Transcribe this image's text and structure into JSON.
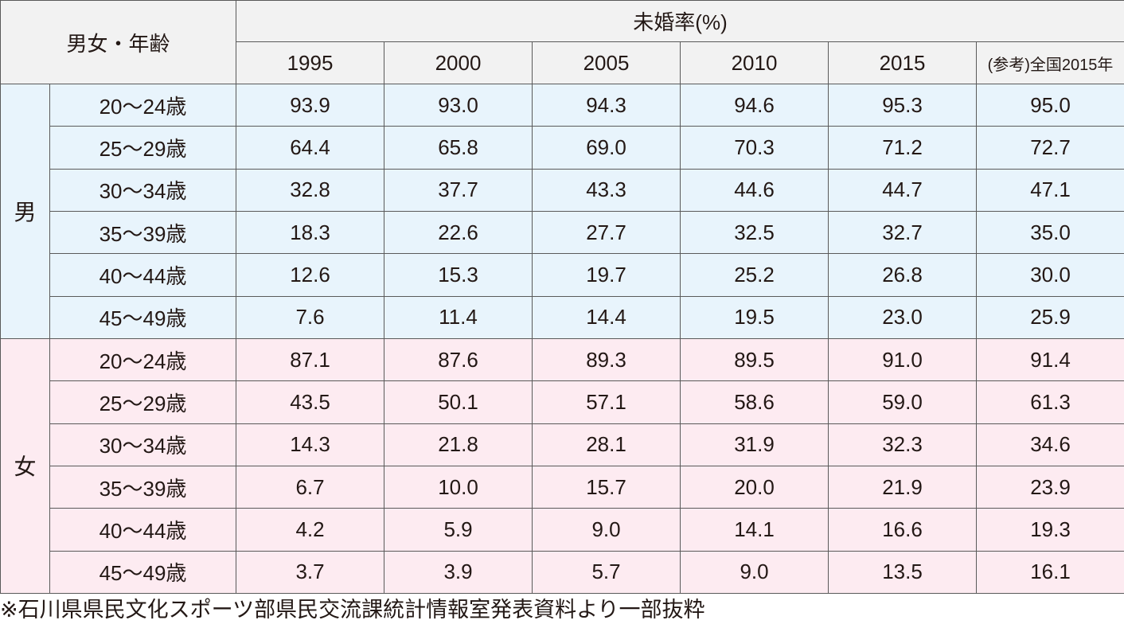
{
  "header": {
    "sex_age": "男女・年齢",
    "rate_title": "未婚率(%)",
    "years": [
      "1995",
      "2000",
      "2005",
      "2010",
      "2015",
      "(参考)全国2015年"
    ]
  },
  "groups": [
    {
      "sex": "男",
      "rows": [
        {
          "age": "20〜24歳",
          "values": [
            "93.9",
            "93.0",
            "94.3",
            "94.6",
            "95.3",
            "95.0"
          ]
        },
        {
          "age": "25〜29歳",
          "values": [
            "64.4",
            "65.8",
            "69.0",
            "70.3",
            "71.2",
            "72.7"
          ]
        },
        {
          "age": "30〜34歳",
          "values": [
            "32.8",
            "37.7",
            "43.3",
            "44.6",
            "44.7",
            "47.1"
          ]
        },
        {
          "age": "35〜39歳",
          "values": [
            "18.3",
            "22.6",
            "27.7",
            "32.5",
            "32.7",
            "35.0"
          ]
        },
        {
          "age": "40〜44歳",
          "values": [
            "12.6",
            "15.3",
            "19.7",
            "25.2",
            "26.8",
            "30.0"
          ]
        },
        {
          "age": "45〜49歳",
          "values": [
            "7.6",
            "11.4",
            "14.4",
            "19.5",
            "23.0",
            "25.9"
          ]
        }
      ]
    },
    {
      "sex": "女",
      "rows": [
        {
          "age": "20〜24歳",
          "values": [
            "87.1",
            "87.6",
            "89.3",
            "89.5",
            "91.0",
            "91.4"
          ]
        },
        {
          "age": "25〜29歳",
          "values": [
            "43.5",
            "50.1",
            "57.1",
            "58.6",
            "59.0",
            "61.3"
          ]
        },
        {
          "age": "30〜34歳",
          "values": [
            "14.3",
            "21.8",
            "28.1",
            "31.9",
            "32.3",
            "34.6"
          ]
        },
        {
          "age": "35〜39歳",
          "values": [
            "6.7",
            "10.0",
            "15.7",
            "20.0",
            "21.9",
            "23.9"
          ]
        },
        {
          "age": "40〜44歳",
          "values": [
            "4.2",
            "5.9",
            "9.0",
            "14.1",
            "16.6",
            "19.3"
          ]
        },
        {
          "age": "45〜49歳",
          "values": [
            "3.7",
            "3.9",
            "5.7",
            "9.0",
            "13.5",
            "16.1"
          ]
        }
      ]
    }
  ],
  "note": "※石川県県民文化スポーツ部県民交流課統計情報室発表資料より一部抜粋",
  "colors": {
    "male_row": "#e8f4fc",
    "female_row": "#fdebf1",
    "header_bg": "#f2f2f2",
    "border": "#5a5a5a"
  }
}
